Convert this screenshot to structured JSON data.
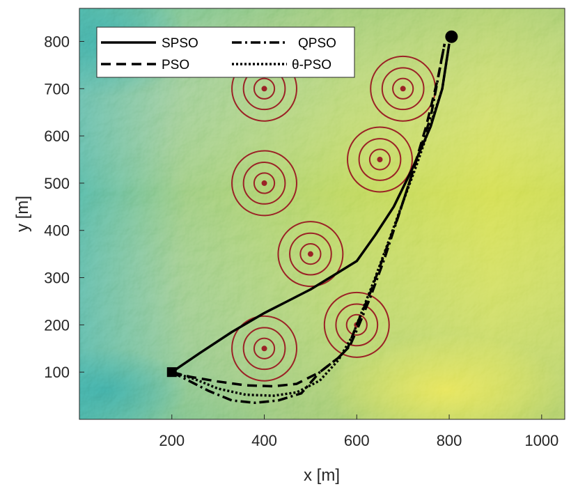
{
  "chart_data": {
    "type": "line",
    "title": "",
    "xlabel": "x [m]",
    "ylabel": "y [m]",
    "xlim": [
      0,
      1050
    ],
    "ylim": [
      0,
      870
    ],
    "xticks": [
      200,
      400,
      600,
      800,
      1000
    ],
    "yticks": [
      100,
      200,
      300,
      400,
      500,
      600,
      700,
      800
    ],
    "grid": false,
    "background": "terrain elevation map (green to yellow)",
    "legend_position": "top-left",
    "start_point": {
      "x": 200,
      "y": 100,
      "marker": "square"
    },
    "goal_point": {
      "x": 805,
      "y": 810,
      "marker": "circle"
    },
    "threats": [
      {
        "x": 400,
        "y": 700
      },
      {
        "x": 700,
        "y": 700
      },
      {
        "x": 650,
        "y": 550
      },
      {
        "x": 400,
        "y": 500
      },
      {
        "x": 500,
        "y": 350
      },
      {
        "x": 600,
        "y": 200
      },
      {
        "x": 400,
        "y": 150
      }
    ],
    "threat_color": "#9b2226",
    "series": [
      {
        "name": "SPSO",
        "style": "solid",
        "x": [
          200,
          260,
          330,
          400,
          450,
          500,
          550,
          600,
          640,
          680,
          720,
          760,
          785,
          800
        ],
        "y": [
          100,
          140,
          185,
          225,
          250,
          275,
          305,
          335,
          390,
          450,
          530,
          620,
          700,
          795
        ]
      },
      {
        "name": "PSO",
        "style": "dashed",
        "x": [
          200,
          240,
          300,
          360,
          420,
          470,
          520,
          560,
          580,
          600,
          630,
          660,
          690,
          720,
          750,
          775,
          790
        ],
        "y": [
          100,
          90,
          80,
          72,
          70,
          75,
          100,
          130,
          150,
          200,
          270,
          350,
          430,
          520,
          620,
          720,
          795
        ]
      },
      {
        "name": "QPSO",
        "style": "dashdot",
        "x": [
          200,
          240,
          280,
          330,
          380,
          430,
          480,
          520,
          560,
          585,
          605,
          630,
          660,
          690,
          720,
          760,
          790
        ],
        "y": [
          100,
          80,
          60,
          40,
          35,
          40,
          55,
          100,
          130,
          155,
          200,
          260,
          340,
          430,
          520,
          640,
          795
        ]
      },
      {
        "name": "θ-PSO",
        "style": "dotted",
        "x": [
          200,
          250,
          300,
          360,
          420,
          470,
          520,
          560,
          590,
          610,
          640,
          670,
          700,
          730,
          760,
          785,
          800
        ],
        "y": [
          100,
          85,
          65,
          52,
          50,
          57,
          82,
          125,
          175,
          225,
          300,
          380,
          460,
          540,
          625,
          700,
          795
        ]
      }
    ]
  },
  "legend": {
    "spso": "SPSO",
    "pso": "PSO",
    "qpso": "QPSO",
    "theta_pso": "θ-PSO"
  }
}
